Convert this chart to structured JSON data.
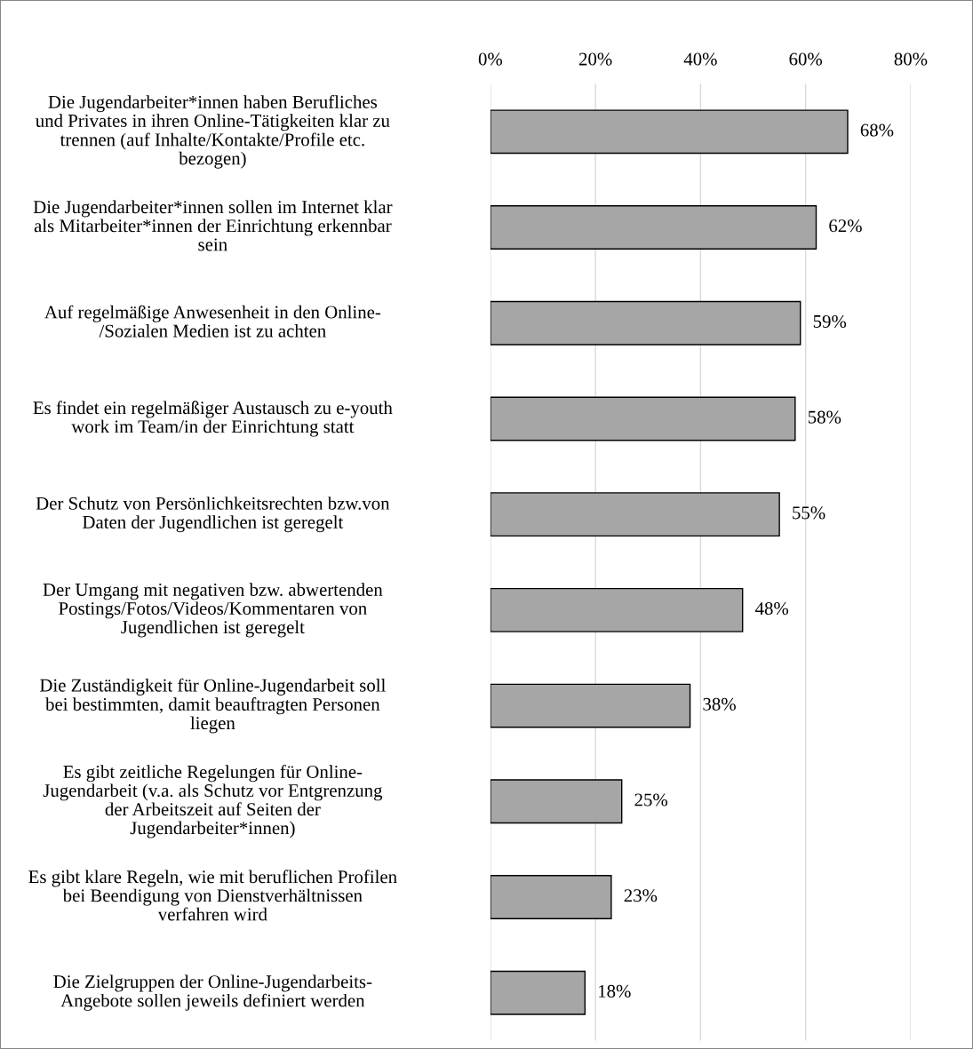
{
  "chart_data": {
    "type": "bar",
    "orientation": "horizontal",
    "categories": [
      "Die Jugendarbeiter*innen haben Berufliches\nund Privates in ihren Online-Tätigkeiten klar zu\ntrennen (auf Inhalte/Kontakte/Profile etc.\nbezogen)",
      "Die Jugendarbeiter*innen sollen im Internet klar\nals Mitarbeiter*innen der Einrichtung erkennbar\nsein",
      "Auf regelmäßige Anwesenheit in den Online-\n/Sozialen Medien ist zu achten",
      "Es findet ein regelmäßiger Austausch zu e-youth\nwork im Team/in der Einrichtung statt",
      "Der Schutz von Persönlichkeitsrechten bzw.von\nDaten der Jugendlichen ist geregelt",
      "Der Umgang mit negativen bzw. abwertenden\nPostings/Fotos/Videos/Kommentaren von\nJugendlichen ist geregelt",
      "Die Zuständigkeit für Online-Jugendarbeit soll\nbei bestimmten, damit beauftragten Personen\nliegen",
      "Es gibt zeitliche Regelungen für Online-\nJugendarbeit (v.a. als Schutz vor Entgrenzung\nder Arbeitszeit auf Seiten der\nJugendarbeiter*innen)",
      "Es gibt klare Regeln, wie mit beruflichen Profilen\nbei Beendigung von Dienstverhältnissen\nverfahren wird",
      "Die Zielgruppen der Online-Jugendarbeits-\nAngebote sollen jeweils definiert werden"
    ],
    "values": [
      68,
      62,
      59,
      58,
      55,
      48,
      38,
      25,
      23,
      18
    ],
    "value_labels": [
      "68%",
      "62%",
      "59%",
      "58%",
      "55%",
      "48%",
      "38%",
      "25%",
      "23%",
      "18%"
    ],
    "color": "#a6a6a6",
    "xlim": [
      0,
      80
    ],
    "xticks": [
      {
        "value": 0,
        "label": "0%"
      },
      {
        "value": 20,
        "label": "20%"
      },
      {
        "value": 40,
        "label": "40%"
      },
      {
        "value": 60,
        "label": "60%"
      },
      {
        "value": 80,
        "label": "80%"
      }
    ],
    "grid": "x"
  }
}
